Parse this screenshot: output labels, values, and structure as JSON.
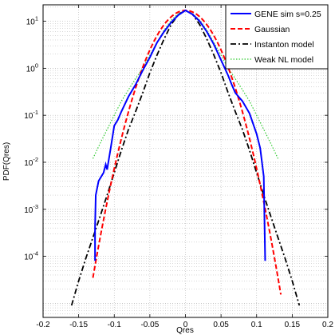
{
  "chart_data": {
    "type": "line",
    "xlabel": "Qres",
    "ylabel": "PDF(Qres)",
    "xlim": [
      -0.2,
      0.2
    ],
    "ylim_log10": [
      -5.3,
      1.35
    ],
    "yscale": "log",
    "grid": true,
    "legend_position": "top-right",
    "x_ticks": [
      -0.2,
      -0.15,
      -0.1,
      -0.05,
      0,
      0.05,
      0.1,
      0.15,
      0.2
    ],
    "x_tick_labels": [
      "-0.2",
      "-0.15",
      "-0.1",
      "-0.05",
      "0",
      "0.05",
      "0.1",
      "0.15",
      "0.2"
    ],
    "y_tick_exponents": [
      1,
      0,
      -1,
      -2,
      -3,
      -4
    ],
    "y_tick_base": "10",
    "series": [
      {
        "name": "GENE sim s=0.25",
        "color": "#0000ff",
        "style": "solid",
        "x": [
          -0.127,
          -0.127,
          -0.126,
          -0.122,
          -0.115,
          -0.112,
          -0.11,
          -0.105,
          -0.1,
          -0.095,
          -0.09,
          -0.08,
          -0.07,
          -0.06,
          -0.05,
          -0.04,
          -0.03,
          -0.02,
          -0.01,
          0.0,
          0.01,
          0.02,
          0.03,
          0.04,
          0.05,
          0.06,
          0.065,
          0.07,
          0.08,
          0.09,
          0.1,
          0.105,
          0.11,
          0.112
        ],
        "y": [
          8e-05,
          0.0004,
          0.002,
          0.004,
          0.006,
          0.009,
          0.007,
          0.02,
          0.06,
          0.08,
          0.12,
          0.25,
          0.45,
          0.9,
          1.7,
          3.5,
          6.0,
          9.5,
          13.5,
          17.0,
          14.0,
          10.0,
          6.0,
          3.2,
          1.5,
          0.7,
          0.45,
          0.3,
          0.2,
          0.11,
          0.04,
          0.02,
          0.005,
          8e-05
        ]
      },
      {
        "name": "Gaussian",
        "color": "#ff0000",
        "style": "dashed",
        "gaussian": {
          "amplitude": 17.0,
          "sigma": 0.0254,
          "mean": 0.0
        },
        "x_range": [
          -0.13,
          0.135
        ]
      },
      {
        "name": "Instanton model",
        "color": "#000000",
        "style": "dashdot",
        "x": [
          -0.16,
          -0.15,
          -0.14,
          -0.13,
          -0.12,
          -0.11,
          -0.1,
          -0.09,
          -0.08,
          -0.07,
          -0.06,
          -0.05,
          -0.04,
          -0.03,
          -0.02,
          -0.01,
          0.0,
          0.01,
          0.02,
          0.03,
          0.04,
          0.05,
          0.06,
          0.07,
          0.08,
          0.09,
          0.1,
          0.11,
          0.12,
          0.13,
          0.14,
          0.15,
          0.16
        ],
        "y": [
          9e-06,
          3e-05,
          9e-05,
          0.00025,
          0.0007,
          0.002,
          0.006,
          0.018,
          0.05,
          0.12,
          0.3,
          0.8,
          1.9,
          4.2,
          8.5,
          14.0,
          17.0,
          14.0,
          8.5,
          4.2,
          1.9,
          0.8,
          0.3,
          0.12,
          0.05,
          0.018,
          0.006,
          0.002,
          0.0007,
          0.00025,
          9e-05,
          3e-05,
          9e-06
        ]
      },
      {
        "name": "Weak NL model",
        "color": "#33cc33",
        "style": "dotted",
        "x": [
          -0.13,
          -0.12,
          -0.11,
          -0.1,
          -0.09,
          -0.08,
          -0.07,
          -0.06,
          -0.05,
          -0.04,
          -0.03,
          -0.02,
          -0.01,
          0.0,
          0.01,
          0.02,
          0.03,
          0.04,
          0.05,
          0.06,
          0.07,
          0.08,
          0.09,
          0.1,
          0.11,
          0.12,
          0.13
        ],
        "y": [
          0.012,
          0.025,
          0.05,
          0.1,
          0.2,
          0.35,
          0.6,
          1.0,
          1.9,
          3.5,
          6.5,
          10.5,
          14.5,
          17.0,
          14.5,
          10.5,
          6.5,
          3.5,
          1.9,
          1.0,
          0.6,
          0.35,
          0.2,
          0.1,
          0.05,
          0.025,
          0.012
        ]
      }
    ]
  }
}
